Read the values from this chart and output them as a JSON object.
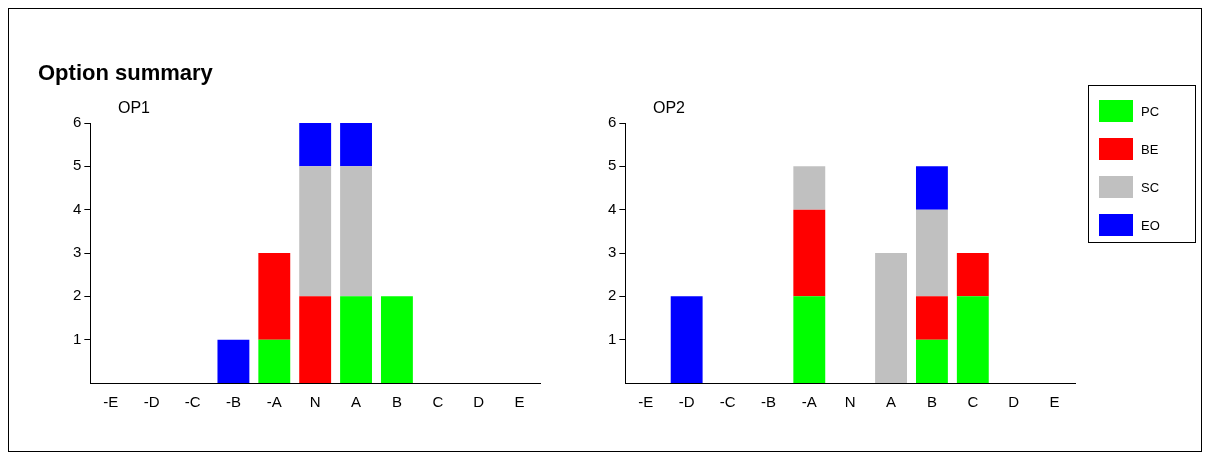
{
  "chart_data": [
    {
      "type": "bar",
      "title": "Option summary",
      "subtitle": "OP1",
      "stacked": true,
      "categories": [
        "-E",
        "-D",
        "-C",
        "-B",
        "-A",
        "N",
        "A",
        "B",
        "C",
        "D",
        "E"
      ],
      "series": [
        {
          "color": "#00ff00",
          "values": [
            0,
            0,
            0,
            0,
            1,
            0,
            2,
            2,
            0,
            0,
            0
          ]
        },
        {
          "color": "#ff0000",
          "values": [
            0,
            0,
            0,
            0,
            2,
            2,
            0,
            0,
            0,
            0,
            0
          ]
        },
        {
          "color": "#c0c0c0",
          "values": [
            0,
            0,
            0,
            0,
            0,
            3,
            3,
            0,
            0,
            0,
            0
          ]
        },
        {
          "color": "#0000ff",
          "values": [
            0,
            0,
            0,
            1,
            0,
            1,
            1,
            0,
            0,
            0,
            0
          ]
        }
      ],
      "ylim": [
        0,
        6
      ],
      "yticks": [
        1,
        2,
        3,
        4,
        5,
        6
      ],
      "grid": false
    },
    {
      "type": "bar",
      "subtitle": "OP2",
      "stacked": true,
      "legend": "right",
      "categories": [
        "-E",
        "-D",
        "-C",
        "-B",
        "-A",
        "N",
        "A",
        "B",
        "C",
        "D",
        "E"
      ],
      "series": [
        {
          "name": "PC",
          "color": "#00ff00",
          "values": [
            0,
            0,
            0,
            0,
            2,
            0,
            0,
            1,
            2,
            0,
            0
          ]
        },
        {
          "name": "BE",
          "color": "#ff0000",
          "values": [
            0,
            0,
            0,
            0,
            2,
            0,
            0,
            1,
            1,
            0,
            0
          ]
        },
        {
          "name": "SC",
          "color": "#c0c0c0",
          "values": [
            0,
            0,
            0,
            0,
            1,
            0,
            3,
            2,
            0,
            0,
            0
          ]
        },
        {
          "name": "EO",
          "color": "#0000ff",
          "values": [
            0,
            2,
            0,
            0,
            0,
            0,
            0,
            1,
            0,
            0,
            0
          ]
        }
      ],
      "ylim": [
        0,
        6
      ],
      "yticks": [
        1,
        2,
        3,
        4,
        5,
        6
      ],
      "grid": false
    }
  ]
}
